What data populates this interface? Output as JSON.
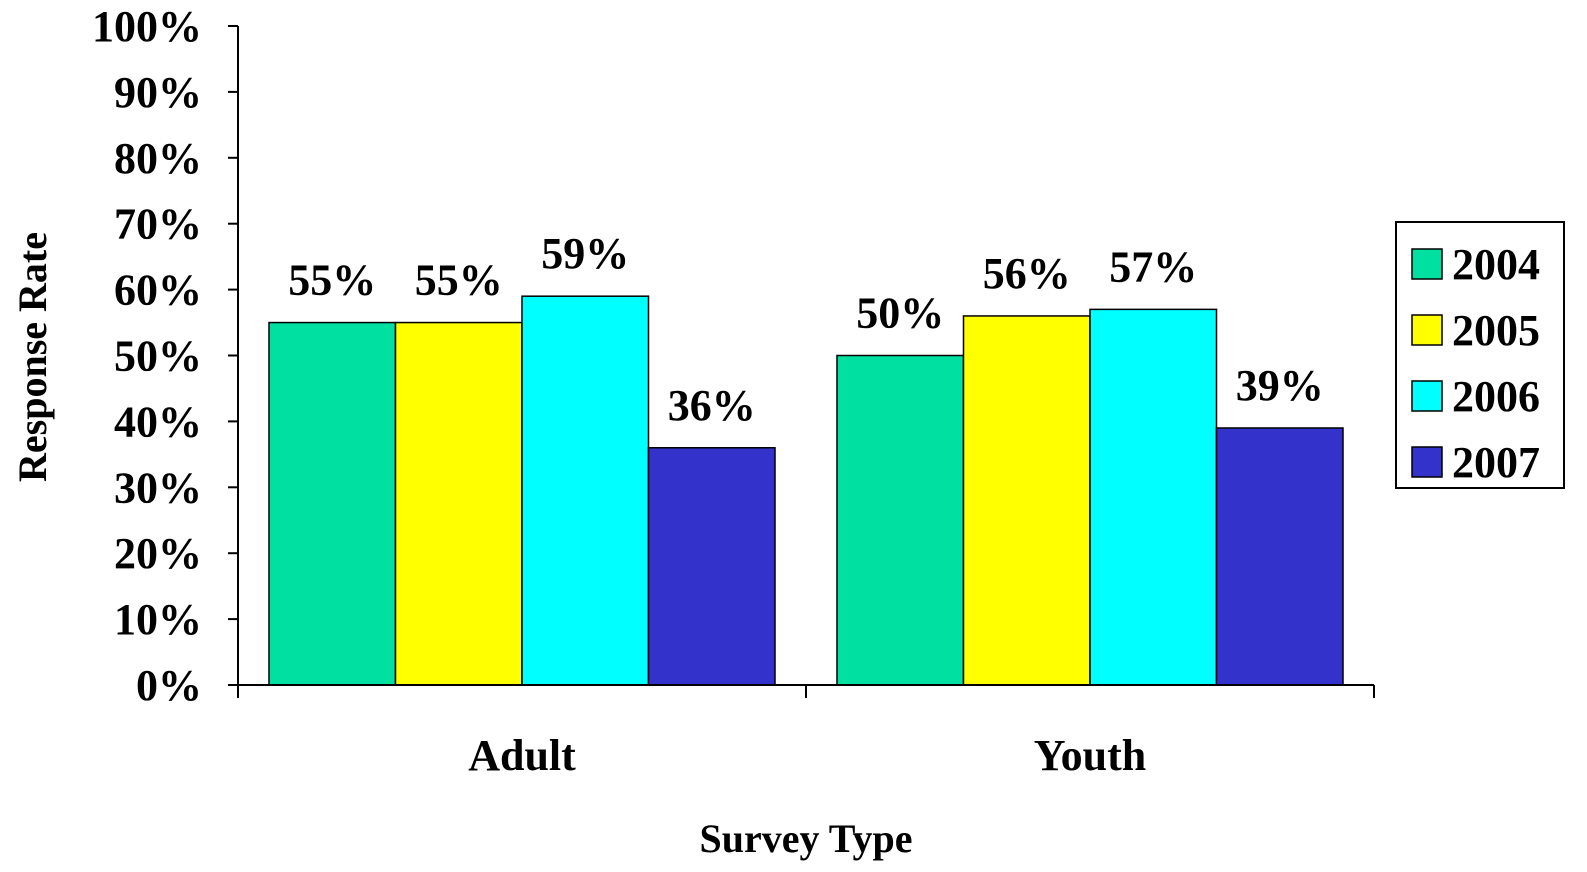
{
  "chart_data": {
    "type": "bar",
    "categories": [
      "Adult",
      "Youth"
    ],
    "series": [
      {
        "name": "2004",
        "color": "#00E0A0",
        "values": [
          55,
          50
        ],
        "labels": [
          "55%",
          "50%"
        ]
      },
      {
        "name": "2005",
        "color": "#FFFF00",
        "values": [
          55,
          56
        ],
        "labels": [
          "55%",
          "56%"
        ]
      },
      {
        "name": "2006",
        "color": "#00FFFF",
        "values": [
          59,
          57
        ],
        "labels": [
          "59%",
          "57%"
        ]
      },
      {
        "name": "2007",
        "color": "#3333CC",
        "values": [
          36,
          39
        ],
        "labels": [
          "36%",
          "39%"
        ]
      }
    ],
    "xlabel": "Survey Type",
    "ylabel": "Response Rate",
    "ylim": [
      0,
      100
    ],
    "yticks": [
      "0%",
      "10%",
      "20%",
      "30%",
      "40%",
      "50%",
      "60%",
      "70%",
      "80%",
      "90%",
      "100%"
    ],
    "legend_position": "right",
    "grid": false
  }
}
